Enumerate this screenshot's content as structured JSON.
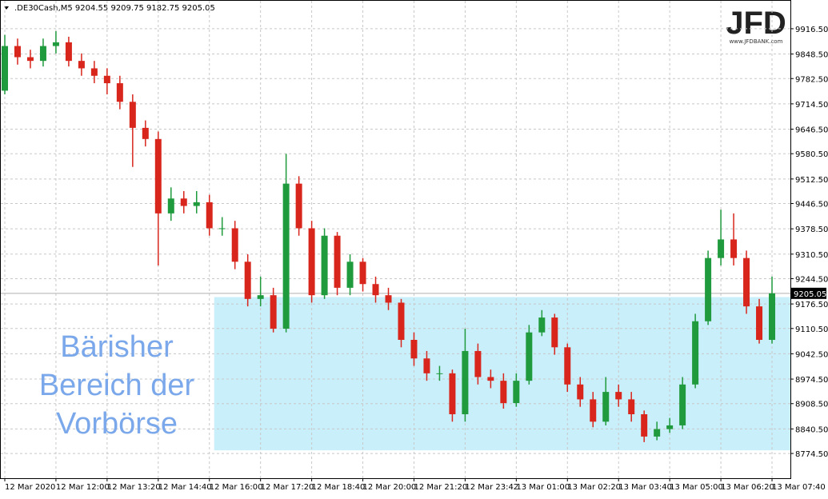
{
  "chart_data": {
    "type": "candlestick",
    "header": ".DE30Cash,M5  9204.55 9209.75 9182.75 9205.05",
    "logo": {
      "mark": "JFD",
      "site": "www.JFDBANK.com"
    },
    "up_color": "#1f9a3c",
    "down_color": "#d8261c",
    "grid": true,
    "x": [
      0,
      4,
      8,
      12,
      16,
      20,
      24,
      28,
      32,
      36,
      40,
      44,
      48,
      52,
      56,
      60,
      64,
      68,
      72,
      76,
      80,
      84,
      88,
      92,
      96,
      100,
      104,
      108,
      112,
      116,
      120,
      124,
      128,
      132,
      136,
      140,
      144,
      148,
      152,
      156,
      160,
      164,
      168,
      172,
      176,
      180,
      184,
      188,
      192,
      196,
      200,
      204,
      208,
      212,
      216,
      220,
      224,
      228,
      232,
      236,
      240
    ],
    "open": [
      9750,
      9870,
      9840,
      9830,
      9870,
      9880,
      9830,
      9810,
      9790,
      9770,
      9720,
      9650,
      9620,
      9420,
      9460,
      9440,
      9450,
      9380,
      9380,
      9290,
      9190,
      9200,
      9110,
      9500,
      9380,
      9200,
      9360,
      9220,
      9290,
      9230,
      9200,
      9180,
      9080,
      9030,
      8990,
      8990,
      8880,
      9050,
      8980,
      8970,
      8910,
      8970,
      9100,
      9140,
      9060,
      8960,
      8920,
      8860,
      8940,
      8920,
      8880,
      8820,
      8840,
      8850,
      8960,
      9130,
      9300,
      9350,
      9300,
      9170,
      9080
    ],
    "high": [
      9900,
      9890,
      9860,
      9890,
      9910,
      9895,
      9850,
      9830,
      9810,
      9790,
      9740,
      9670,
      9640,
      9490,
      9480,
      9480,
      9470,
      9410,
      9400,
      9310,
      9250,
      9220,
      9580,
      9520,
      9400,
      9380,
      9370,
      9310,
      9300,
      9250,
      9220,
      9190,
      9100,
      9050,
      9010,
      9000,
      9110,
      9070,
      9000,
      8990,
      8990,
      9120,
      9160,
      9150,
      9070,
      8980,
      8940,
      8980,
      8960,
      8940,
      8890,
      8860,
      8870,
      8980,
      9150,
      9320,
      9430,
      9420,
      9320,
      9190,
      9250
    ],
    "low": [
      9740,
      9820,
      9810,
      9815,
      9850,
      9815,
      9790,
      9770,
      9740,
      9700,
      9545,
      9600,
      9280,
      9400,
      9420,
      9420,
      9360,
      9360,
      9270,
      9170,
      9170,
      9100,
      9100,
      9360,
      9180,
      9190,
      9200,
      9200,
      9210,
      9180,
      9160,
      9060,
      9010,
      8970,
      8970,
      8860,
      8860,
      8960,
      8950,
      8895,
      8900,
      8960,
      9090,
      9040,
      8940,
      8900,
      8845,
      8850,
      8900,
      8860,
      8805,
      8810,
      8830,
      8840,
      8950,
      9120,
      9280,
      9280,
      9150,
      9070,
      9070
    ],
    "close": [
      9870,
      9840,
      9830,
      9870,
      9880,
      9830,
      9810,
      9790,
      9770,
      9720,
      9650,
      9620,
      9420,
      9460,
      9440,
      9450,
      9380,
      9380,
      9290,
      9190,
      9200,
      9110,
      9500,
      9380,
      9200,
      9360,
      9220,
      9290,
      9230,
      9200,
      9180,
      9080,
      9030,
      8990,
      8990,
      8880,
      9050,
      8980,
      8970,
      8910,
      8970,
      9100,
      9140,
      9060,
      8960,
      8920,
      8860,
      8940,
      8920,
      8880,
      8820,
      8840,
      8850,
      8960,
      9130,
      9300,
      9350,
      9300,
      9170,
      9080,
      9205.05
    ],
    "xlim": [
      -1.25,
      245.75
    ],
    "xticks": [
      {
        "value": 0,
        "label": "12 Mar 2020"
      },
      {
        "value": 16,
        "label": "12 Mar 12:00"
      },
      {
        "value": 32,
        "label": "12 Mar 13:20"
      },
      {
        "value": 48,
        "label": "12 Mar 14:40"
      },
      {
        "value": 64,
        "label": "12 Mar 16:00"
      },
      {
        "value": 80,
        "label": "12 Mar 17:20"
      },
      {
        "value": 96,
        "label": "12 Mar 18:40"
      },
      {
        "value": 112,
        "label": "12 Mar 20:00"
      },
      {
        "value": 128,
        "label": "12 Mar 21:20"
      },
      {
        "value": 144,
        "label": "12 Mar 23:42"
      },
      {
        "value": 160,
        "label": "13 Mar 01:00"
      },
      {
        "value": 176,
        "label": "13 Mar 02:20"
      },
      {
        "value": 192,
        "label": "13 Mar 03:40"
      },
      {
        "value": 208,
        "label": "13 Mar 05:00"
      },
      {
        "value": 224,
        "label": "13 Mar 06:20"
      },
      {
        "value": 240,
        "label": "13 Mar 07:40"
      }
    ],
    "ylim": [
      8708,
      9991.6
    ],
    "yticks": [
      {
        "value": 8774.5,
        "label": "8774.50"
      },
      {
        "value": 8840.5,
        "label": "8840.50"
      },
      {
        "value": 8908.5,
        "label": "8908.50"
      },
      {
        "value": 8974.5,
        "label": "8974.50"
      },
      {
        "value": 9042.5,
        "label": "9042.50"
      },
      {
        "value": 9110.5,
        "label": "9110.50"
      },
      {
        "value": 9176.5,
        "label": "9176.50"
      },
      {
        "value": 9244.5,
        "label": "9244.50"
      },
      {
        "value": 9310.5,
        "label": "9310.50"
      },
      {
        "value": 9378.5,
        "label": "9378.50"
      },
      {
        "value": 9446.5,
        "label": "9446.50"
      },
      {
        "value": 9512.5,
        "label": "9512.50"
      },
      {
        "value": 9580.5,
        "label": "9580.50"
      },
      {
        "value": 9646.5,
        "label": "9646.50"
      },
      {
        "value": 9714.5,
        "label": "9714.50"
      },
      {
        "value": 9782.5,
        "label": "9782.50"
      },
      {
        "value": 9848.5,
        "label": "9848.50"
      },
      {
        "value": 9916.5,
        "label": "9916.50"
      }
    ],
    "current_price": {
      "value": 9205.05,
      "label": "9205.05"
    },
    "zone": {
      "x0": 65.5,
      "y0": 8783,
      "y1": 9195,
      "color": "#c9effb",
      "text_color": "#7ba8ea",
      "lines": [
        "Bärisher",
        "Bereich der",
        "Vorbörse"
      ]
    }
  }
}
